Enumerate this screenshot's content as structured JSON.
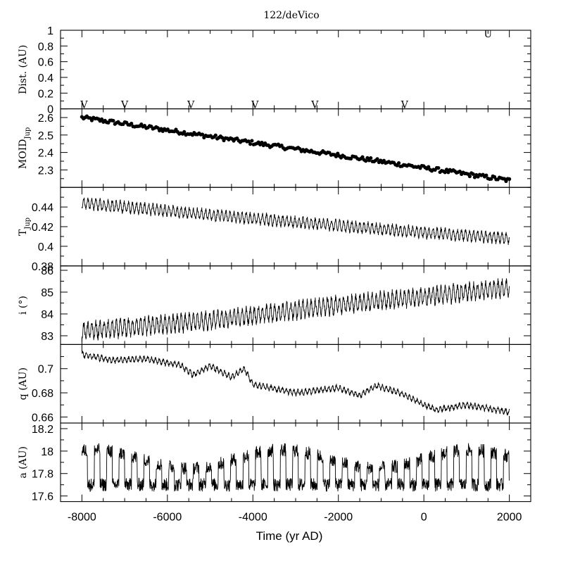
{
  "chart_data": {
    "type": "line",
    "title": "122/deVico",
    "xlabel": "Time (yr AD)",
    "xlim": [
      -8500,
      2500
    ],
    "x_ticks": [
      "-8000",
      "-6000",
      "-4000",
      "-2000",
      "0",
      "2000"
    ],
    "panels": [
      {
        "id": "dist",
        "ylabel": "Dist. (AU)",
        "ylim": [
          0,
          1
        ],
        "y_ticks": [
          "0",
          "0.2",
          "0.4",
          "0.6",
          "0.8",
          "1"
        ],
        "markers": [
          {
            "label": "V",
            "x": -7950,
            "y": 0
          },
          {
            "label": "V",
            "x": -7000,
            "y": 0
          },
          {
            "label": "V",
            "x": -5450,
            "y": 0
          },
          {
            "label": "V",
            "x": -3950,
            "y": 0
          },
          {
            "label": "V",
            "x": -2550,
            "y": 0
          },
          {
            "label": "V",
            "x": -450,
            "y": 0
          },
          {
            "label": "U",
            "x": 1500,
            "y": 0.9
          }
        ]
      },
      {
        "id": "moid",
        "ylabel": "MOID_Jup",
        "ylim": [
          2.2,
          2.65
        ],
        "y_ticks": [
          "2.3",
          "2.4",
          "2.5",
          "2.6"
        ],
        "style": "points",
        "trend": {
          "x": [
            -8000,
            2000
          ],
          "y": [
            2.6,
            2.24
          ]
        },
        "scatter": 0.012,
        "n": 260
      },
      {
        "id": "tjup",
        "ylabel": "T_Jup",
        "ylim": [
          0.38,
          0.46
        ],
        "y_ticks": [
          "0.38",
          "0.4",
          "0.42",
          "0.44"
        ],
        "style": "line",
        "trend": {
          "x": [
            -8000,
            -5000,
            -2000,
            0,
            2000
          ],
          "y": [
            0.444,
            0.432,
            0.421,
            0.414,
            0.408
          ]
        },
        "osc_amp": 0.005,
        "osc_period": 95,
        "noise": 0.002
      },
      {
        "id": "incl",
        "ylabel": "i (°)",
        "ylim": [
          82.6,
          86.2
        ],
        "y_ticks": [
          "83",
          "84",
          "85",
          "86"
        ],
        "style": "line",
        "trend": {
          "x": [
            -8000,
            -5000,
            -2000,
            0,
            2000
          ],
          "y": [
            83.2,
            83.7,
            84.4,
            84.8,
            85.2
          ]
        },
        "osc_amp": 0.35,
        "osc_period": 95,
        "noise": 0.15
      },
      {
        "id": "perihelion",
        "ylabel": "q (AU)",
        "ylim": [
          0.655,
          0.72
        ],
        "y_ticks": [
          "0.66",
          "0.68",
          "0.7"
        ],
        "style": "line",
        "trend": {
          "x": [
            -8000,
            -7300,
            -6500,
            -5700,
            -5400,
            -5000,
            -4500,
            -4200,
            -4000,
            -3000,
            -2000,
            -1500,
            -1100,
            -500,
            0,
            300,
            1000,
            2000
          ],
          "y": [
            0.712,
            0.707,
            0.708,
            0.703,
            0.695,
            0.702,
            0.693,
            0.7,
            0.687,
            0.68,
            0.684,
            0.678,
            0.686,
            0.679,
            0.67,
            0.666,
            0.67,
            0.664
          ]
        },
        "osc_amp": 0.002,
        "osc_period": 90,
        "noise": 0.0012
      },
      {
        "id": "semimajor",
        "ylabel": "a (AU)",
        "ylim": [
          17.55,
          18.25
        ],
        "y_ticks": [
          "17.6",
          "17.8",
          "18",
          "18.2"
        ],
        "style": "line",
        "base": 17.7,
        "top": 17.97,
        "period": 290,
        "noise": 0.06
      }
    ]
  }
}
